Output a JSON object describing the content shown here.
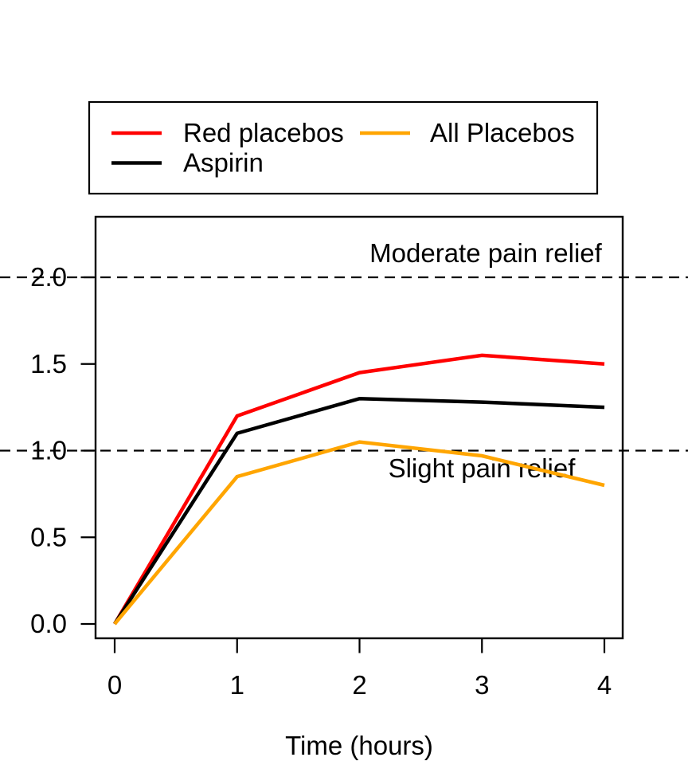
{
  "chart_data": {
    "type": "line",
    "x": [
      0,
      1,
      2,
      3,
      4
    ],
    "x_tick_labels": [
      "0",
      "1",
      "2",
      "3",
      "4"
    ],
    "y_tick_labels": [
      "0.0",
      "0.5",
      "1.0",
      "1.5",
      "2.0"
    ],
    "xlabel": "Time (hours)",
    "ylabel": "",
    "xlim": [
      0,
      4
    ],
    "ylim": [
      0,
      2.3
    ],
    "grid": false,
    "series": [
      {
        "name": "Red placebos",
        "color": "#ff0000",
        "values": [
          0,
          1.2,
          1.45,
          1.55,
          1.5
        ]
      },
      {
        "name": "Aspirin",
        "color": "#000000",
        "values": [
          0,
          1.1,
          1.3,
          1.28,
          1.25
        ]
      },
      {
        "name": "All Placebos",
        "color": "#ffa500",
        "values": [
          0,
          0.85,
          1.05,
          0.97,
          0.8
        ]
      }
    ],
    "reference_lines": [
      {
        "y": 2.0,
        "label": "Moderate pain relief",
        "style": "dashed",
        "color": "#000000"
      },
      {
        "y": 1.0,
        "label": "Slight pain relief",
        "style": "dashed",
        "color": "#000000"
      }
    ],
    "legend": {
      "position": "top-left",
      "columns": 2,
      "items": [
        {
          "label": "Red placebos",
          "color": "#ff0000"
        },
        {
          "label": "Aspirin",
          "color": "#000000"
        },
        {
          "label": "All Placebos",
          "color": "#ffa500"
        }
      ]
    }
  }
}
